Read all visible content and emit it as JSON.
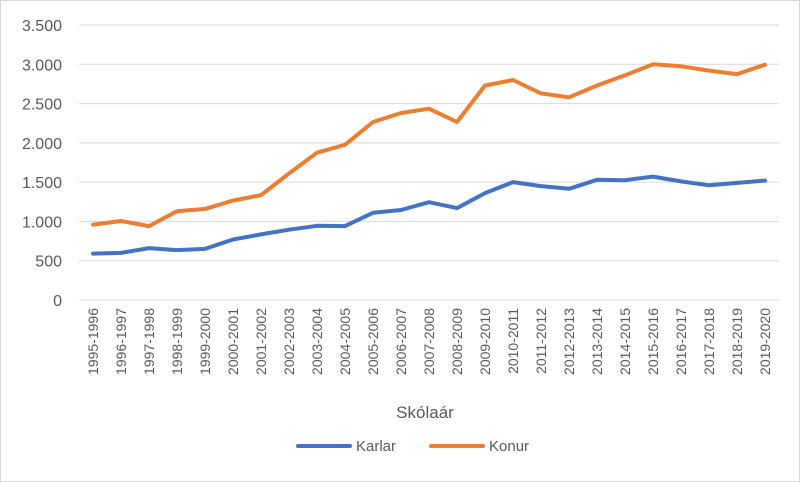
{
  "chart_data": {
    "type": "line",
    "title": "",
    "xlabel": "Skólaár",
    "ylabel": "",
    "ylim": [
      0,
      3500
    ],
    "yticks": [
      0,
      500,
      1000,
      1500,
      2000,
      2500,
      3000,
      3500
    ],
    "ytick_labels": [
      "0",
      "500",
      "1.000",
      "1.500",
      "2.000",
      "2.500",
      "3.000",
      "3.500"
    ],
    "grid": true,
    "legend_position": "bottom",
    "categories": [
      "1995-1996",
      "1996-1997",
      "1997-1998",
      "1998-1999",
      "1999-2000",
      "2000-2001",
      "2001-2002",
      "2002-2003",
      "2003-2004",
      "2004-2005",
      "2005-2006",
      "2006-2007",
      "2007-2008",
      "2008-2009",
      "2009-2010",
      "2010-2011",
      "2011-2012",
      "2012-2013",
      "2013-2014",
      "2014-2015",
      "2015-2016",
      "2016-2017",
      "2017-2018",
      "2018-2019",
      "2019-2020"
    ],
    "series": [
      {
        "name": "Karlar",
        "color": "#4472C4",
        "values": [
          590,
          600,
          660,
          635,
          650,
          770,
          835,
          895,
          945,
          940,
          1110,
          1145,
          1245,
          1170,
          1360,
          1500,
          1450,
          1415,
          1530,
          1525,
          1570,
          1510,
          1460,
          1490,
          1520
        ]
      },
      {
        "name": "Konur",
        "color": "#ED7D31",
        "values": [
          960,
          1005,
          940,
          1130,
          1160,
          1265,
          1335,
          1610,
          1875,
          1975,
          2265,
          2380,
          2435,
          2265,
          2730,
          2800,
          2630,
          2580,
          2730,
          2860,
          3000,
          2975,
          2920,
          2875,
          2995
        ]
      }
    ]
  }
}
